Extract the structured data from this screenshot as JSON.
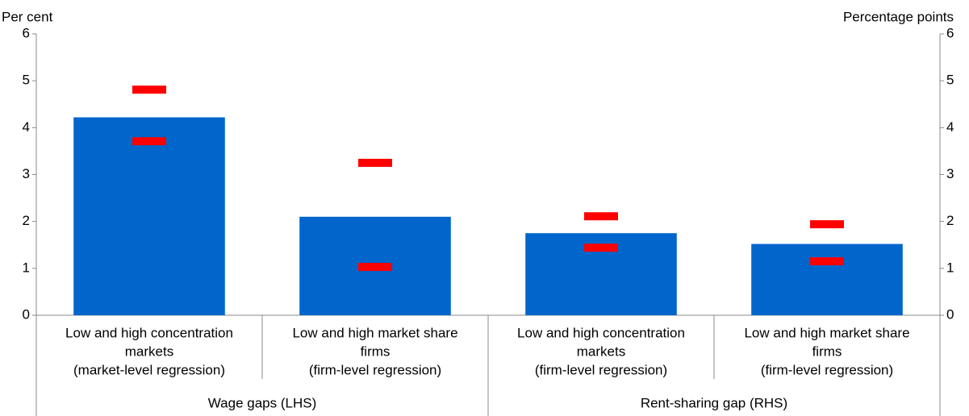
{
  "chart_data": {
    "type": "bar",
    "y_label": "Per cent",
    "y2_label": "Percentage points",
    "categories": [
      [
        "Low and high concentration",
        "markets",
        "(market-level regression)"
      ],
      [
        "Low and high market share",
        "firms",
        "(firm-level regression)"
      ],
      [
        "Low and high concentration",
        "markets",
        "(firm-level regression)"
      ],
      [
        "Low and high market share",
        "firms",
        "(firm-level regression)"
      ]
    ],
    "group_labels": [
      "Wage gaps (LHS)",
      "Rent-sharing gap (RHS)"
    ],
    "values": [
      4.22,
      2.1,
      1.75,
      1.52
    ],
    "ci_upper": [
      4.81,
      3.25,
      2.11,
      1.94
    ],
    "ci_lower": [
      3.71,
      1.03,
      1.44,
      1.15
    ],
    "color": "#0066cc",
    "ci_color": "#ff0000",
    "ylim": [
      0,
      6
    ],
    "yticks": [
      0,
      1,
      2,
      3,
      4,
      5,
      6
    ],
    "y2lim": [
      0,
      6
    ],
    "y2ticks": [
      0,
      1,
      2,
      3,
      4,
      5,
      6
    ]
  }
}
